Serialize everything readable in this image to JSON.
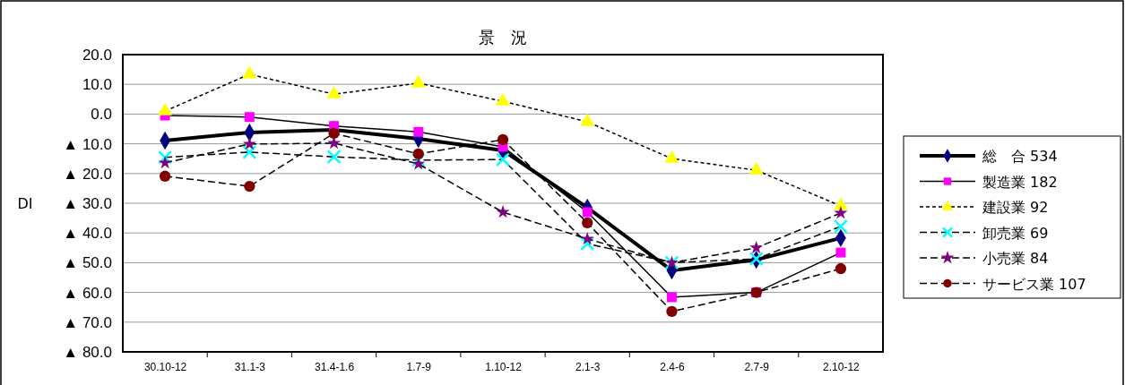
{
  "chart_data": {
    "type": "line",
    "title": "景　況",
    "ylabel": "DI",
    "categories": [
      "30.10-12",
      "31.1-3",
      "31.4-1.6",
      "1.7-9",
      "1.10-12",
      "2.1-3",
      "2.4-6",
      "2.7-9",
      "2.10-12"
    ],
    "series": [
      {
        "name": "総　合 534",
        "color": "#000080",
        "marker": "diamond",
        "line_style": "solid",
        "values": [
          -8.9,
          -6.2,
          -5.3,
          -8.3,
          -12.2,
          -31.5,
          -52.6,
          -49,
          -41.7
        ]
      },
      {
        "name": "製造業 182",
        "color": "#ff00ff",
        "marker": "square",
        "line_style": "solid",
        "values": [
          -0.5,
          -1,
          -4,
          -6,
          -11,
          -33,
          -61.6,
          -60,
          -46.6
        ]
      },
      {
        "name": "建設業 92",
        "color": "#ffff00",
        "marker": "triangle",
        "line_style": "dotted",
        "values": [
          1,
          13.4,
          6.7,
          10.4,
          4.3,
          -2.6,
          -15,
          -18.9,
          -30.9
        ]
      },
      {
        "name": "卸売業 69",
        "color": "#00ffff",
        "marker": "cross",
        "line_style": "dashed",
        "values": [
          -14.6,
          -12.8,
          -14.4,
          -15.5,
          -15.3,
          -43.6,
          -50,
          -48.7,
          -37.8
        ]
      },
      {
        "name": "小売業 84",
        "color": "#800080",
        "marker": "star",
        "line_style": "dashed",
        "values": [
          -16.4,
          -10.1,
          -9.8,
          -16.8,
          -33,
          -42,
          -50,
          -45,
          -33.3
        ]
      },
      {
        "name": "サービス業 107",
        "color": "#800000",
        "marker": "circle",
        "line_style": "dashed",
        "values": [
          -20.9,
          -24.3,
          -6.5,
          -13.4,
          -8.6,
          -36.6,
          -66.4,
          -60,
          -52
        ]
      }
    ],
    "ylim": [
      -80,
      20
    ],
    "yticks": [
      {
        "value": 20,
        "label": "20.0"
      },
      {
        "value": 10,
        "label": "10.0"
      },
      {
        "value": 0,
        "label": "0.0"
      },
      {
        "value": -10,
        "label": "▲ 10.0"
      },
      {
        "value": -20,
        "label": "▲ 20.0"
      },
      {
        "value": -30,
        "label": "▲ 30.0"
      },
      {
        "value": -40,
        "label": "▲ 40.0"
      },
      {
        "value": -50,
        "label": "▲ 50.0"
      },
      {
        "value": -60,
        "label": "▲ 60.0"
      },
      {
        "value": -70,
        "label": "▲ 70.0"
      },
      {
        "value": -80,
        "label": "▲ 80.0"
      }
    ],
    "grid": "y",
    "legend": "right"
  }
}
